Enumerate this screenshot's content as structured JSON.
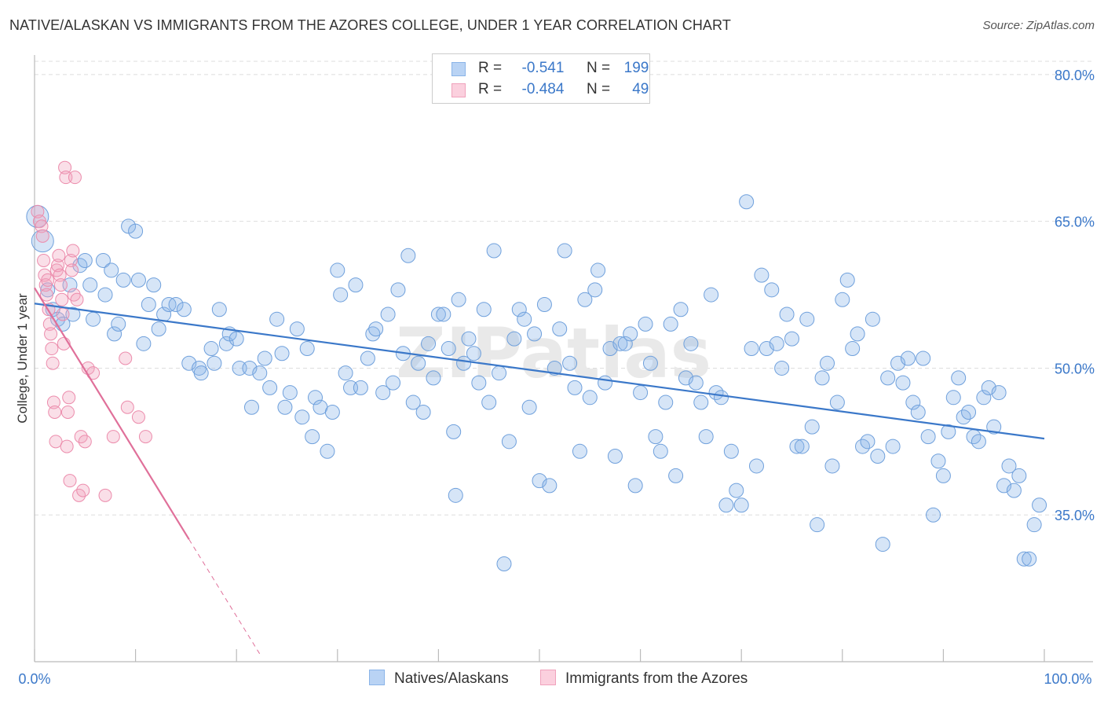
{
  "title": "NATIVE/ALASKAN VS IMMIGRANTS FROM THE AZORES COLLEGE, UNDER 1 YEAR CORRELATION CHART",
  "source": "Source: ZipAtlas.com",
  "watermark": "ZIPatlas",
  "colors": {
    "blue": "#8ab4e8",
    "blue_line": "#3b78c9",
    "pink": "#f0a2bc",
    "pink_line": "#e0709a",
    "grid": "#dddddd"
  },
  "legend": {
    "r_label": "R =",
    "n_label": "N =",
    "rows": [
      {
        "r": "-0.541",
        "n": "199"
      },
      {
        "r": "-0.484",
        "n": "49"
      }
    ]
  },
  "chart_data": {
    "type": "scatter",
    "title": "NATIVE/ALASKAN VS IMMIGRANTS FROM THE AZORES COLLEGE, UNDER 1 YEAR CORRELATION CHART",
    "xlabel": "",
    "ylabel": "College, Under 1 year",
    "xlim": [
      0,
      100
    ],
    "ylim": [
      20,
      82
    ],
    "x_tick_labels": [
      "0.0%",
      "100.0%"
    ],
    "y_ticks": [
      35,
      50,
      65,
      80
    ],
    "y_tick_labels": [
      "35.0%",
      "50.0%",
      "65.0%",
      "80.0%"
    ],
    "grid": true,
    "legend_position": "top-center",
    "series": [
      {
        "name": "Natives/Alaskans",
        "color": "#8ab4e8",
        "trend": {
          "x0": 0,
          "y0": 56.6,
          "x1": 100,
          "y1": 42.8
        },
        "points": [
          [
            0.3,
            65.5
          ],
          [
            0.8,
            63.0
          ],
          [
            1.3,
            58.0
          ],
          [
            1.8,
            56.0
          ],
          [
            2.3,
            55.0
          ],
          [
            2.8,
            54.5
          ],
          [
            3.5,
            58.5
          ],
          [
            3.8,
            55.5
          ],
          [
            4.5,
            60.5
          ],
          [
            5.0,
            61.0
          ],
          [
            5.5,
            58.5
          ],
          [
            5.8,
            55.0
          ],
          [
            6.8,
            61.0
          ],
          [
            7.0,
            57.5
          ],
          [
            7.6,
            60.0
          ],
          [
            7.9,
            53.5
          ],
          [
            8.3,
            54.5
          ],
          [
            8.8,
            59.0
          ],
          [
            9.3,
            64.5
          ],
          [
            10.0,
            64.0
          ],
          [
            10.3,
            59.0
          ],
          [
            10.8,
            52.5
          ],
          [
            11.3,
            56.5
          ],
          [
            11.8,
            58.5
          ],
          [
            12.3,
            54.0
          ],
          [
            12.8,
            55.5
          ],
          [
            13.3,
            56.5
          ],
          [
            14.0,
            56.5
          ],
          [
            14.8,
            56.0
          ],
          [
            15.3,
            50.5
          ],
          [
            16.3,
            50.0
          ],
          [
            16.5,
            49.5
          ],
          [
            17.5,
            52.0
          ],
          [
            17.8,
            50.5
          ],
          [
            18.3,
            56.0
          ],
          [
            19.0,
            52.5
          ],
          [
            19.3,
            53.5
          ],
          [
            20.0,
            53.0
          ],
          [
            20.3,
            50.0
          ],
          [
            21.3,
            50.0
          ],
          [
            21.5,
            46.0
          ],
          [
            22.3,
            49.5
          ],
          [
            22.8,
            51.0
          ],
          [
            23.3,
            48.0
          ],
          [
            24.0,
            55.0
          ],
          [
            24.5,
            51.5
          ],
          [
            24.8,
            46.0
          ],
          [
            25.3,
            47.5
          ],
          [
            26.0,
            54.0
          ],
          [
            26.5,
            45.0
          ],
          [
            27.0,
            52.0
          ],
          [
            27.5,
            43.0
          ],
          [
            27.8,
            47.0
          ],
          [
            28.3,
            46.0
          ],
          [
            29.0,
            41.5
          ],
          [
            29.5,
            45.5
          ],
          [
            30.0,
            60.0
          ],
          [
            30.3,
            57.5
          ],
          [
            30.8,
            49.5
          ],
          [
            31.3,
            48.0
          ],
          [
            31.8,
            58.5
          ],
          [
            32.3,
            48.0
          ],
          [
            33.0,
            51.0
          ],
          [
            33.5,
            53.5
          ],
          [
            33.8,
            54.0
          ],
          [
            34.5,
            47.5
          ],
          [
            35.0,
            55.5
          ],
          [
            35.5,
            48.5
          ],
          [
            36.0,
            58.0
          ],
          [
            36.5,
            51.5
          ],
          [
            37.0,
            61.5
          ],
          [
            37.5,
            46.5
          ],
          [
            38.0,
            50.5
          ],
          [
            38.5,
            45.5
          ],
          [
            39.0,
            52.5
          ],
          [
            39.5,
            49.0
          ],
          [
            40.0,
            55.5
          ],
          [
            40.5,
            55.5
          ],
          [
            41.0,
            52.0
          ],
          [
            41.5,
            43.5
          ],
          [
            41.7,
            37.0
          ],
          [
            42.0,
            57.0
          ],
          [
            42.5,
            50.5
          ],
          [
            43.0,
            53.0
          ],
          [
            43.5,
            51.5
          ],
          [
            44.0,
            48.5
          ],
          [
            44.5,
            56.0
          ],
          [
            45.0,
            46.5
          ],
          [
            45.5,
            62.0
          ],
          [
            46.0,
            49.5
          ],
          [
            46.5,
            30.0
          ],
          [
            47.0,
            42.5
          ],
          [
            47.5,
            53.0
          ],
          [
            48.0,
            56.0
          ],
          [
            48.5,
            55.0
          ],
          [
            49.0,
            46.0
          ],
          [
            49.5,
            53.5
          ],
          [
            50.0,
            38.5
          ],
          [
            50.5,
            56.5
          ],
          [
            51.0,
            38.0
          ],
          [
            51.5,
            50.0
          ],
          [
            52.0,
            54.0
          ],
          [
            52.5,
            62.0
          ],
          [
            53.0,
            50.5
          ],
          [
            53.5,
            48.0
          ],
          [
            54.0,
            41.5
          ],
          [
            54.5,
            57.0
          ],
          [
            55.0,
            47.0
          ],
          [
            55.5,
            58.0
          ],
          [
            55.8,
            60.0
          ],
          [
            56.5,
            48.5
          ],
          [
            57.0,
            52.0
          ],
          [
            57.5,
            41.0
          ],
          [
            58.0,
            52.5
          ],
          [
            58.5,
            52.5
          ],
          [
            59.0,
            53.5
          ],
          [
            59.5,
            38.0
          ],
          [
            60.0,
            47.5
          ],
          [
            60.5,
            54.5
          ],
          [
            61.0,
            50.5
          ],
          [
            61.5,
            43.0
          ],
          [
            62.0,
            41.5
          ],
          [
            62.5,
            46.5
          ],
          [
            63.0,
            54.5
          ],
          [
            63.5,
            39.0
          ],
          [
            64.0,
            56.0
          ],
          [
            64.5,
            49.0
          ],
          [
            65.0,
            52.5
          ],
          [
            65.5,
            48.5
          ],
          [
            66.0,
            46.5
          ],
          [
            66.5,
            43.0
          ],
          [
            67.0,
            57.5
          ],
          [
            67.5,
            47.5
          ],
          [
            68.0,
            47.0
          ],
          [
            68.5,
            36.0
          ],
          [
            69.0,
            41.5
          ],
          [
            69.5,
            37.5
          ],
          [
            70.0,
            36.0
          ],
          [
            70.5,
            67.0
          ],
          [
            71.0,
            52.0
          ],
          [
            71.5,
            40.0
          ],
          [
            72.0,
            59.5
          ],
          [
            72.5,
            52.0
          ],
          [
            73.0,
            58.0
          ],
          [
            73.5,
            52.5
          ],
          [
            74.0,
            50.0
          ],
          [
            74.5,
            55.5
          ],
          [
            75.0,
            53.0
          ],
          [
            75.5,
            42.0
          ],
          [
            76.0,
            42.0
          ],
          [
            76.5,
            55.0
          ],
          [
            77.0,
            44.0
          ],
          [
            77.5,
            34.0
          ],
          [
            78.0,
            49.0
          ],
          [
            78.5,
            50.5
          ],
          [
            79.0,
            40.0
          ],
          [
            79.5,
            46.5
          ],
          [
            80.0,
            57.0
          ],
          [
            80.5,
            59.0
          ],
          [
            81.0,
            52.0
          ],
          [
            81.5,
            53.5
          ],
          [
            82.0,
            42.0
          ],
          [
            82.5,
            42.5
          ],
          [
            83.0,
            55.0
          ],
          [
            83.5,
            41.0
          ],
          [
            84.0,
            32.0
          ],
          [
            84.5,
            49.0
          ],
          [
            85.0,
            42.0
          ],
          [
            85.5,
            50.5
          ],
          [
            86.0,
            48.5
          ],
          [
            86.5,
            51.0
          ],
          [
            87.0,
            46.5
          ],
          [
            87.5,
            45.5
          ],
          [
            88.0,
            51.0
          ],
          [
            88.5,
            43.0
          ],
          [
            89.0,
            35.0
          ],
          [
            89.5,
            40.5
          ],
          [
            90.0,
            39.0
          ],
          [
            90.5,
            43.5
          ],
          [
            91.0,
            47.0
          ],
          [
            91.5,
            49.0
          ],
          [
            92.0,
            45.0
          ],
          [
            92.5,
            45.5
          ],
          [
            93.0,
            43.0
          ],
          [
            93.5,
            42.5
          ],
          [
            94.0,
            47.0
          ],
          [
            94.5,
            48.0
          ],
          [
            95.0,
            44.0
          ],
          [
            95.5,
            47.5
          ],
          [
            96.0,
            38.0
          ],
          [
            96.5,
            40.0
          ],
          [
            97.0,
            37.5
          ],
          [
            97.5,
            39.0
          ],
          [
            98.0,
            30.5
          ],
          [
            98.5,
            30.5
          ],
          [
            99.0,
            34.0
          ],
          [
            99.5,
            36.0
          ]
        ]
      },
      {
        "name": "Immigrants from the Azores",
        "color": "#f0a2bc",
        "trend": {
          "x0": 0,
          "y0": 58.2,
          "x1": 15.3,
          "y1": 32.5,
          "dash_x1": 22.3,
          "dash_y1": 20.8
        },
        "points": [
          [
            0.3,
            66.0
          ],
          [
            0.5,
            65.0
          ],
          [
            0.7,
            64.5
          ],
          [
            0.8,
            63.5
          ],
          [
            0.9,
            61.0
          ],
          [
            1.0,
            59.5
          ],
          [
            1.1,
            58.5
          ],
          [
            1.2,
            57.5
          ],
          [
            1.3,
            59.0
          ],
          [
            1.4,
            56.0
          ],
          [
            1.5,
            54.5
          ],
          [
            1.6,
            53.5
          ],
          [
            1.7,
            52.0
          ],
          [
            1.8,
            50.5
          ],
          [
            1.9,
            46.5
          ],
          [
            2.0,
            45.5
          ],
          [
            2.1,
            42.5
          ],
          [
            2.2,
            60.0
          ],
          [
            2.3,
            60.5
          ],
          [
            2.4,
            61.5
          ],
          [
            2.5,
            59.5
          ],
          [
            2.6,
            58.5
          ],
          [
            2.7,
            57.0
          ],
          [
            2.8,
            55.5
          ],
          [
            2.9,
            52.5
          ],
          [
            3.0,
            70.5
          ],
          [
            3.1,
            69.5
          ],
          [
            3.2,
            42.0
          ],
          [
            3.3,
            45.5
          ],
          [
            3.4,
            47.0
          ],
          [
            3.5,
            38.5
          ],
          [
            3.6,
            61.0
          ],
          [
            3.7,
            60.0
          ],
          [
            3.8,
            62.0
          ],
          [
            3.9,
            57.5
          ],
          [
            4.0,
            69.5
          ],
          [
            4.2,
            57.0
          ],
          [
            4.4,
            37.0
          ],
          [
            4.6,
            43.0
          ],
          [
            4.8,
            37.5
          ],
          [
            5.0,
            42.5
          ],
          [
            5.3,
            50.0
          ],
          [
            5.8,
            49.5
          ],
          [
            7.0,
            37.0
          ],
          [
            7.8,
            43.0
          ],
          [
            9.0,
            51.0
          ],
          [
            9.2,
            46.0
          ],
          [
            10.3,
            45.0
          ],
          [
            11.0,
            43.0
          ]
        ]
      }
    ]
  }
}
